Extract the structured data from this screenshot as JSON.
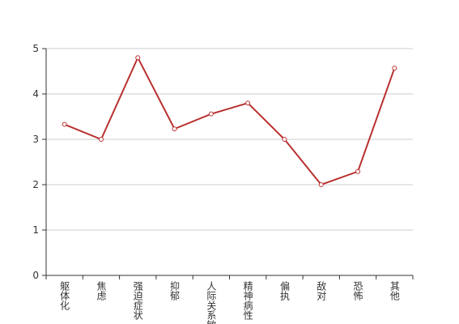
{
  "chart_data": {
    "type": "line",
    "categories": [
      "躯体化",
      "焦虑",
      "强迫症状",
      "抑郁",
      "人际关系敏感",
      "精神病性",
      "偏执",
      "敌对",
      "恐怖",
      "其他"
    ],
    "series": [
      {
        "color": "#b8312f",
        "values": [
          3.33,
          3.0,
          4.8,
          3.23,
          3.56,
          3.8,
          3.0,
          2.0,
          2.29,
          4.57
        ]
      }
    ],
    "ylim": [
      0,
      5
    ],
    "yticks": [
      0,
      1,
      2,
      3,
      4,
      5
    ],
    "grid": true
  }
}
